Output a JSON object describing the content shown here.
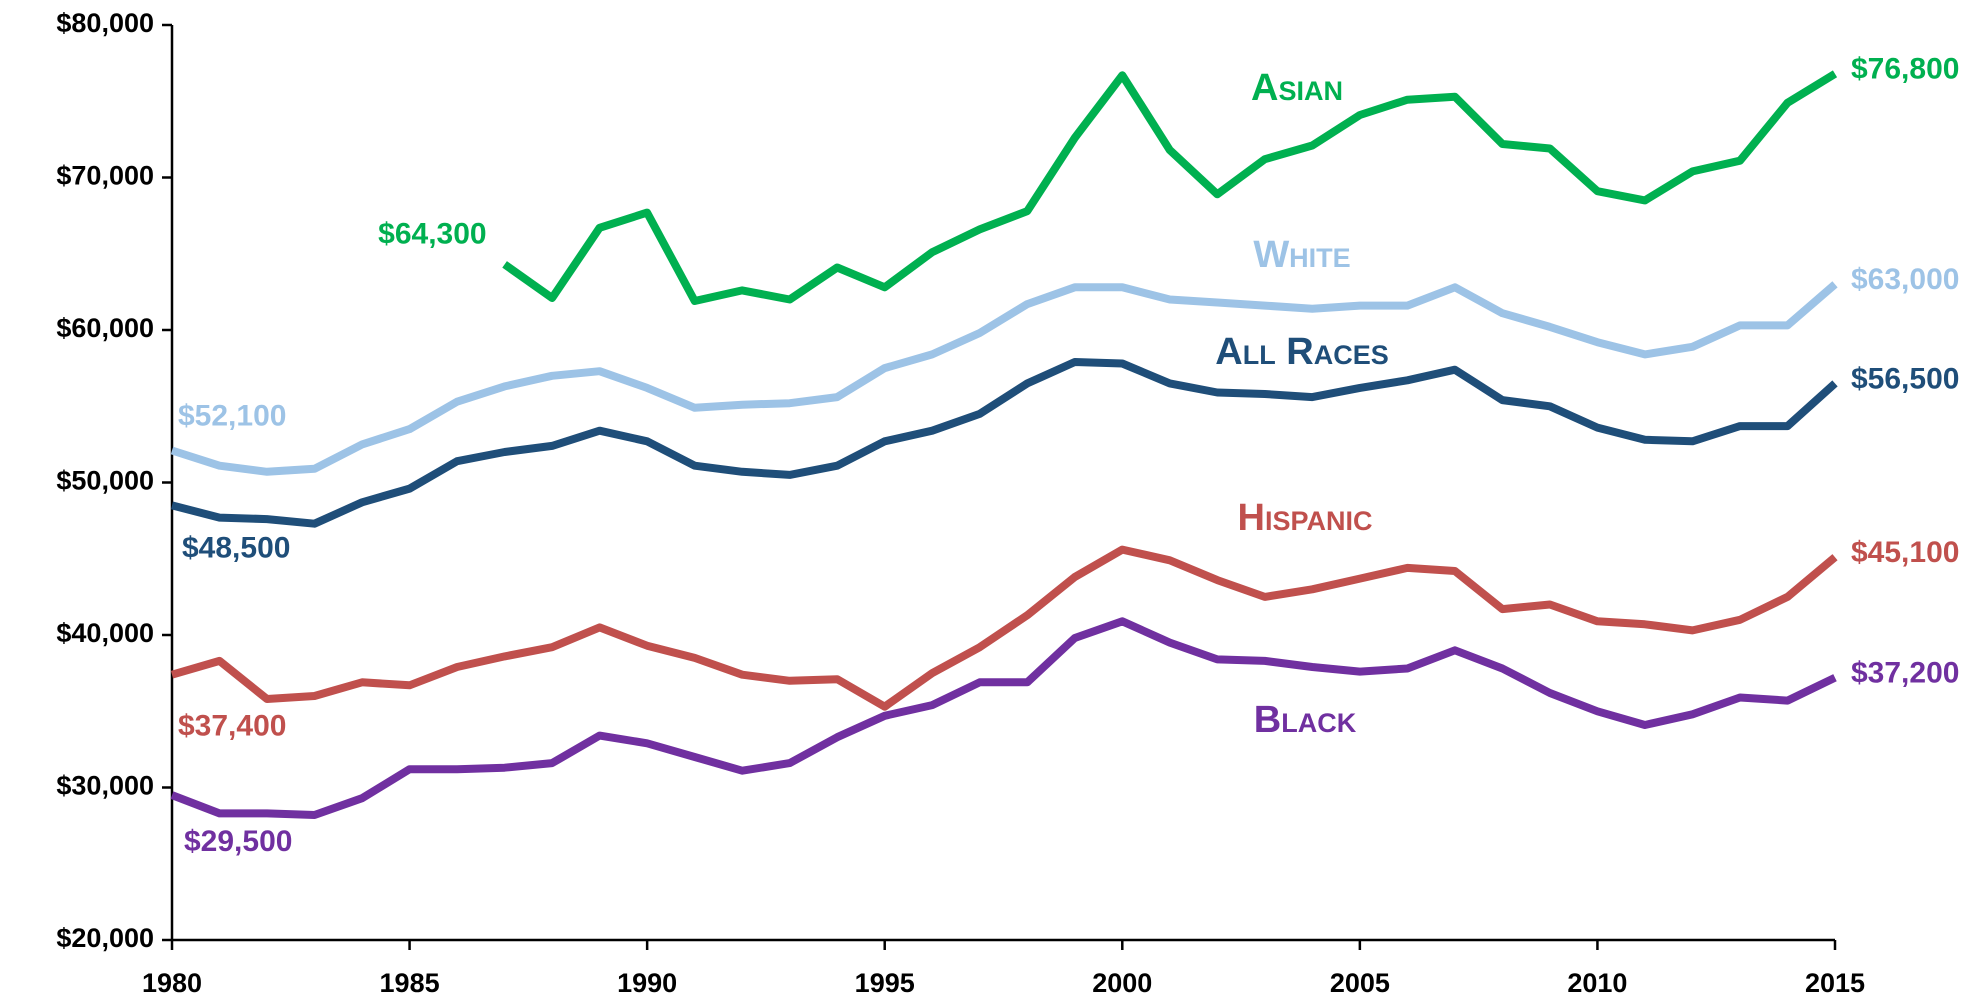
{
  "chart_data": {
    "type": "line",
    "x": [
      1980,
      1981,
      1982,
      1983,
      1984,
      1985,
      1986,
      1987,
      1988,
      1989,
      1990,
      1991,
      1992,
      1993,
      1994,
      1995,
      1996,
      1997,
      1998,
      1999,
      2000,
      2001,
      2002,
      2003,
      2004,
      2005,
      2006,
      2007,
      2008,
      2009,
      2010,
      2011,
      2012,
      2013,
      2014,
      2015
    ],
    "xlim": [
      1980,
      2015
    ],
    "xticks": [
      1980,
      1985,
      1990,
      1995,
      2000,
      2005,
      2010,
      2015
    ],
    "ylim": [
      20000,
      80000
    ],
    "yticks": [
      {
        "value": 20000,
        "label": "$20,000"
      },
      {
        "value": 30000,
        "label": "$30,000"
      },
      {
        "value": 40000,
        "label": "$40,000"
      },
      {
        "value": 50000,
        "label": "$50,000"
      },
      {
        "value": 60000,
        "label": "$60,000"
      },
      {
        "value": 70000,
        "label": "$70,000"
      },
      {
        "value": 80000,
        "label": "$80,000"
      }
    ],
    "grid": false,
    "series": [
      {
        "name": "Asian",
        "color": "#00b050",
        "values": [
          null,
          null,
          null,
          null,
          null,
          null,
          null,
          64300,
          62100,
          66700,
          67700,
          61900,
          62600,
          62000,
          64100,
          62800,
          65100,
          66600,
          67800,
          72600,
          76700,
          71800,
          68900,
          71200,
          72100,
          74100,
          75100,
          75300,
          72200,
          71900,
          69100,
          68500,
          70400,
          71100,
          74900,
          76800
        ],
        "value_labels": [
          null,
          null,
          null,
          null,
          null,
          null,
          null,
          "$64,300",
          null,
          null,
          null,
          null,
          null,
          null,
          null,
          null,
          null,
          null,
          null,
          null,
          null,
          null,
          null,
          null,
          null,
          null,
          null,
          null,
          null,
          null,
          null,
          null,
          null,
          null,
          null,
          "$76,800"
        ]
      },
      {
        "name": "White",
        "color": "#9dc3e6",
        "values": [
          52100,
          51100,
          50700,
          50900,
          52500,
          53500,
          55300,
          56300,
          57000,
          57300,
          56200,
          54900,
          55100,
          55200,
          55600,
          57500,
          58400,
          59800,
          61700,
          62800,
          62800,
          62000,
          61800,
          61600,
          61400,
          61600,
          61600,
          62800,
          61100,
          60200,
          59200,
          58400,
          58900,
          60300,
          60300,
          63000
        ],
        "value_labels": [
          "$52,100",
          null,
          null,
          null,
          null,
          null,
          null,
          null,
          null,
          null,
          null,
          null,
          null,
          null,
          null,
          null,
          null,
          null,
          null,
          null,
          null,
          null,
          null,
          null,
          null,
          null,
          null,
          null,
          null,
          null,
          null,
          null,
          null,
          null,
          null,
          "$63,000"
        ]
      },
      {
        "name": "All Races",
        "color": "#1f4e79",
        "values": [
          48500,
          47700,
          47600,
          47300,
          48700,
          49600,
          51400,
          52000,
          52400,
          53400,
          52700,
          51100,
          50700,
          50500,
          51100,
          52700,
          53400,
          54500,
          56500,
          57900,
          57800,
          56500,
          55900,
          55800,
          55600,
          56200,
          56700,
          57400,
          55400,
          55000,
          53600,
          52800,
          52700,
          53700,
          53700,
          56500
        ],
        "value_labels": [
          "$48,500",
          null,
          null,
          null,
          null,
          null,
          null,
          null,
          null,
          null,
          null,
          null,
          null,
          null,
          null,
          null,
          null,
          null,
          null,
          null,
          null,
          null,
          null,
          null,
          null,
          null,
          null,
          null,
          null,
          null,
          null,
          null,
          null,
          null,
          null,
          "$56,500"
        ]
      },
      {
        "name": "Hispanic",
        "color": "#c0504d",
        "values": [
          37400,
          38300,
          35800,
          36000,
          36900,
          36700,
          37900,
          38600,
          39200,
          40500,
          39300,
          38500,
          37400,
          37000,
          37100,
          35300,
          37500,
          39200,
          41300,
          43800,
          45600,
          44900,
          43600,
          42500,
          43000,
          43700,
          44400,
          44200,
          41700,
          42000,
          40900,
          40700,
          40300,
          41000,
          42500,
          45100
        ],
        "value_labels": [
          "$37,400",
          null,
          null,
          null,
          null,
          null,
          null,
          null,
          null,
          null,
          null,
          null,
          null,
          null,
          null,
          null,
          null,
          null,
          null,
          null,
          null,
          null,
          null,
          null,
          null,
          null,
          null,
          null,
          null,
          null,
          null,
          null,
          null,
          null,
          null,
          "$45,100"
        ]
      },
      {
        "name": "Black",
        "color": "#7030a0",
        "values": [
          29500,
          28300,
          28300,
          28200,
          29300,
          31200,
          31200,
          31300,
          31600,
          33400,
          32900,
          32000,
          31100,
          31600,
          33300,
          34700,
          35400,
          36900,
          36900,
          39800,
          40900,
          39500,
          38400,
          38300,
          37900,
          37600,
          37800,
          39000,
          37800,
          36200,
          35000,
          34100,
          34800,
          35900,
          35700,
          37200
        ],
        "value_labels": [
          "$29,500",
          null,
          null,
          null,
          null,
          null,
          null,
          null,
          null,
          null,
          null,
          null,
          null,
          null,
          null,
          null,
          null,
          null,
          null,
          null,
          null,
          null,
          null,
          null,
          null,
          null,
          null,
          null,
          null,
          null,
          null,
          null,
          null,
          null,
          null,
          "$37,200"
        ]
      }
    ]
  }
}
